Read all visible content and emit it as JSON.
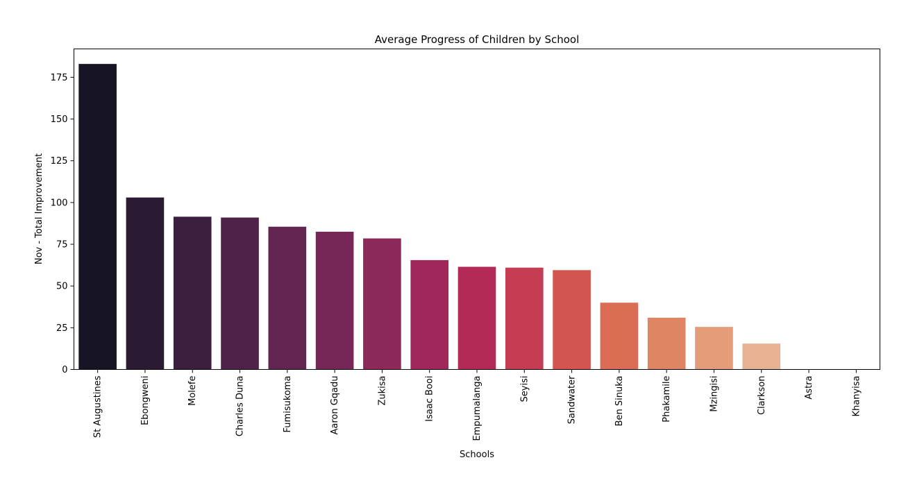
{
  "chart_data": {
    "type": "bar",
    "title": "Average Progress of Children by School",
    "xlabel": "Schools",
    "ylabel": "Nov - Total Improvement",
    "ylim": [
      0,
      192
    ],
    "yticks": [
      0,
      25,
      50,
      75,
      100,
      125,
      150,
      175
    ],
    "grid": false,
    "legend": "none",
    "categories": [
      "St Augustines",
      "Ebongweni",
      "Molefe",
      "Charles Duna",
      "Fumisukoma",
      "Aaron Gqadu",
      "Zukisa",
      "Isaac Booi",
      "Empumalanga",
      "Seyisi",
      "Sandwater",
      "Ben Sinuka",
      "Phakamile",
      "Mzingisi",
      "Clarkson",
      "Astra",
      "Khanyisa"
    ],
    "values": [
      183,
      103,
      91.5,
      91,
      85.5,
      82.5,
      78.5,
      65.5,
      61.5,
      61,
      59.5,
      40,
      31,
      25.5,
      15.5,
      0,
      0
    ],
    "colors": [
      "#171425",
      "#2a1b32",
      "#3c1f3e",
      "#4f2249",
      "#622552",
      "#772757",
      "#8c295a",
      "#a1275a",
      "#b42a57",
      "#c63d53",
      "#d2564f",
      "#db6d55",
      "#e08563",
      "#e39d79",
      "#e8b191",
      "#f0c6ad",
      "#f5d9c8"
    ]
  }
}
